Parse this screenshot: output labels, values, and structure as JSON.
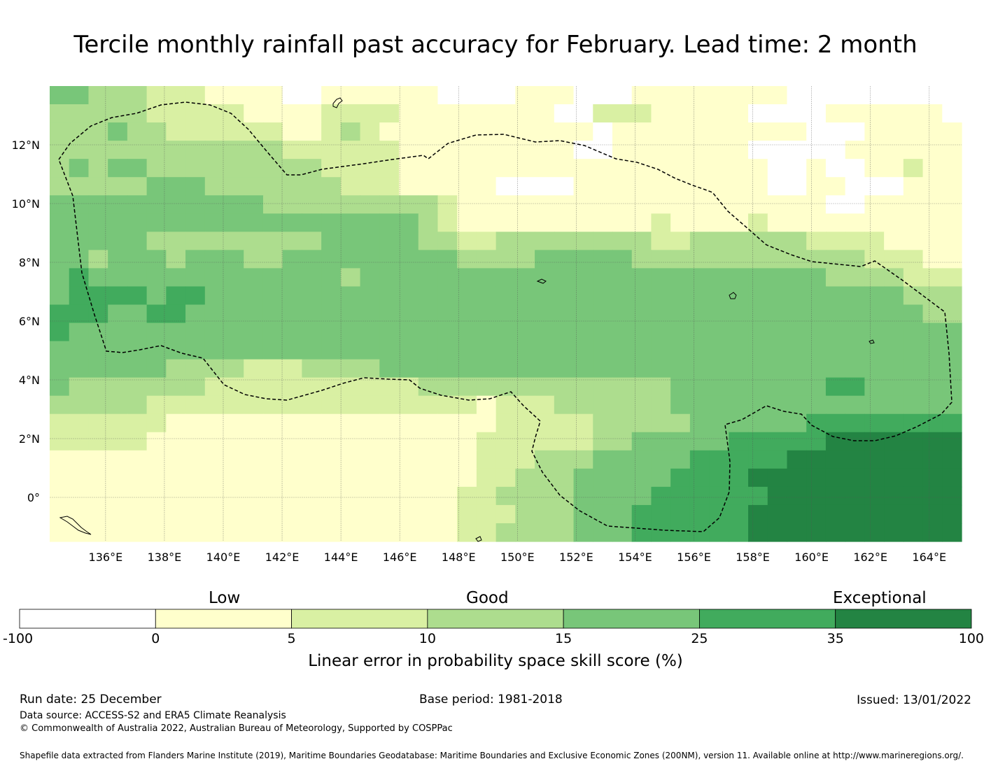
{
  "title": "Tercile monthly rainfall past accuracy for February. Lead time: 2 month",
  "lat_labels": [
    "12°N",
    "10°N",
    "8°N",
    "6°N",
    "4°N",
    "2°N",
    "0°"
  ],
  "lon_labels": [
    "136°E",
    "138°E",
    "140°E",
    "142°E",
    "144°E",
    "146°E",
    "148°E",
    "150°E",
    "152°E",
    "154°E",
    "156°E",
    "158°E",
    "160°E",
    "162°E",
    "164°E"
  ],
  "map": {
    "lon_range": [
      134.1,
      165.1
    ],
    "lat_range": [
      -1.5,
      14.0
    ],
    "grid_step": 2,
    "eez_boundary": "dashed"
  },
  "colorbar": {
    "categories": [
      "Low",
      "Good",
      "Exceptional"
    ],
    "ticks": [
      "-100",
      "0",
      "5",
      "10",
      "15",
      "25",
      "35",
      "100"
    ],
    "colors": [
      "#ffffff",
      "#ffffcc",
      "#d9f0a3",
      "#addd8e",
      "#78c679",
      "#41ab5d",
      "#238443"
    ],
    "label": "Linear error in probability space skill score (%)"
  },
  "footer": {
    "run_date": "Run date: 25 December",
    "base_period": "Base period: 1981-2018",
    "issued": "Issued: 13/01/2022",
    "data_source": "Data source: ACCESS-S2 and ERA5 Climate Reanalysis",
    "copyright": "© Commonwealth of Australia 2022, Australian Bureau of Meteorology, Supported by COSPPac",
    "shapefile": "Shapefile data extracted from Flanders Marine Institute (2019), Maritime Boundaries Geodatabase: Maritime Boundaries and Exclusive Economic Zones (200NM), version 11. Available online at http://www.marineregions.org/."
  }
}
